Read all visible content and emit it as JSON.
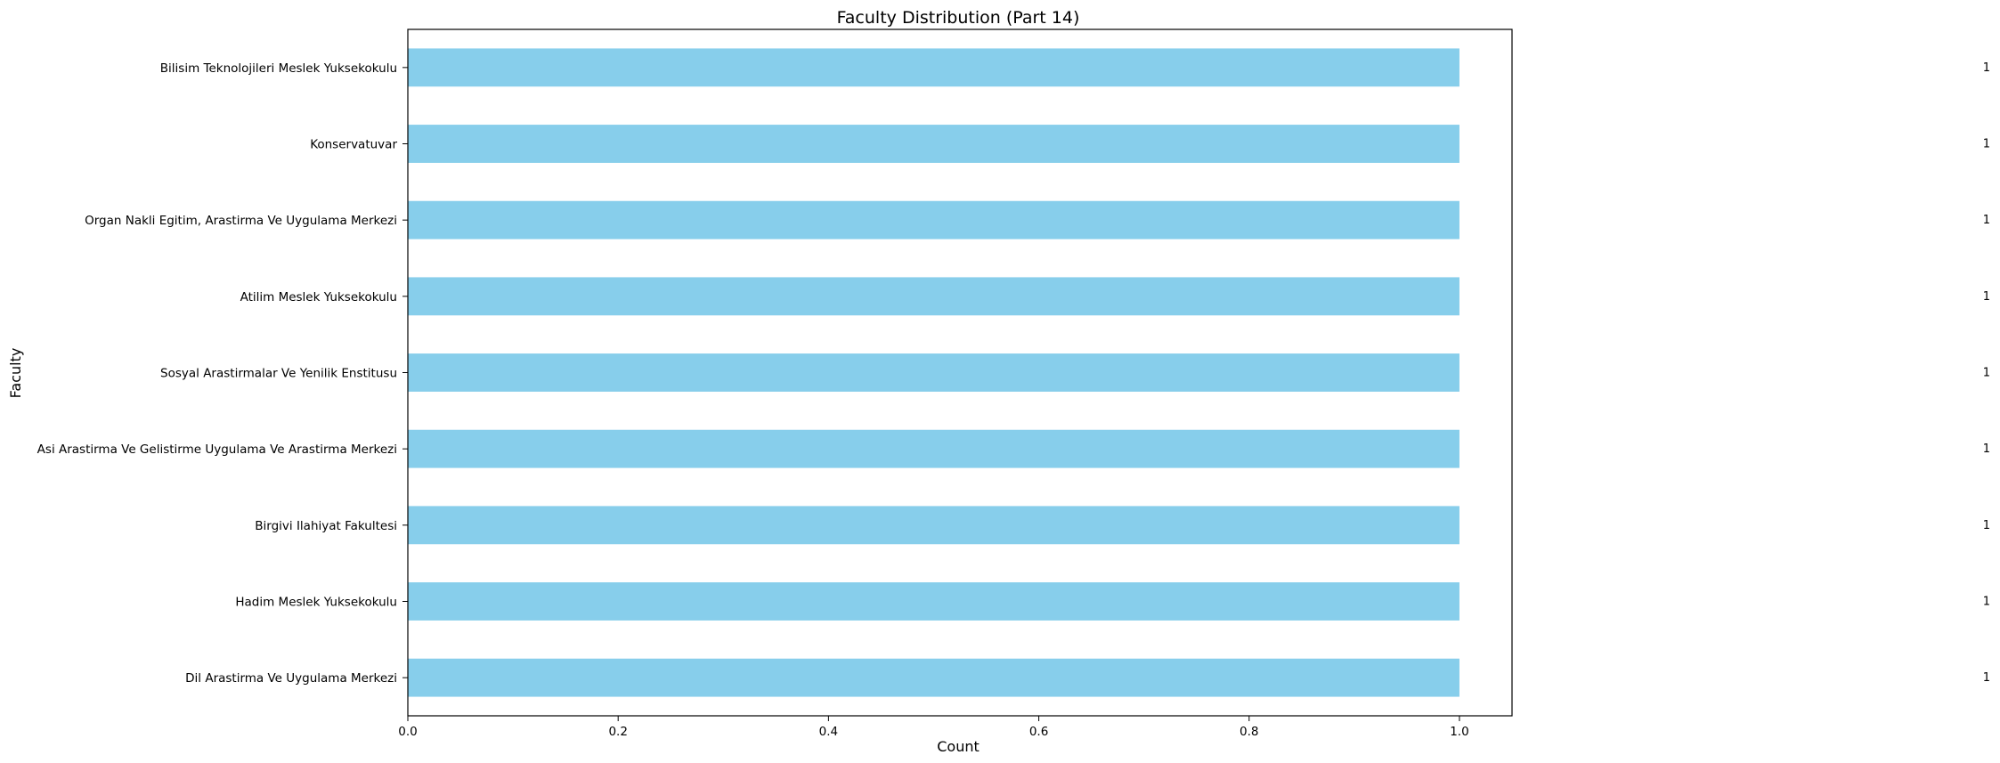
{
  "chart_data": {
    "type": "bar",
    "orientation": "horizontal",
    "title": "Faculty Distribution (Part 14)",
    "xlabel": "Count",
    "ylabel": "Faculty",
    "xlim": [
      0,
      1.05
    ],
    "xticks": [
      "0.0",
      "0.2",
      "0.4",
      "0.6",
      "0.8",
      "1.0"
    ],
    "categories": [
      "Bilisim Teknolojileri Meslek Yuksekokulu",
      "Konservatuvar",
      "Organ Nakli Egitim, Arastirma Ve Uygulama Merkezi",
      "Atilim Meslek Yuksekokulu",
      "Sosyal Arastirmalar Ve Yenilik Enstitusu",
      "Asi Arastirma Ve Gelistirme Uygulama Ve Arastirma Merkezi",
      "Birgivi Ilahiyat Fakultesi",
      "Hadim Meslek Yuksekokulu",
      "Dil Arastirma Ve Uygulama Merkezi"
    ],
    "values": [
      1,
      1,
      1,
      1,
      1,
      1,
      1,
      1,
      1
    ],
    "data_labels": [
      "1",
      "1",
      "1",
      "1",
      "1",
      "1",
      "1",
      "1",
      "1"
    ],
    "grid": false,
    "bar_color": "#87ceeb"
  }
}
